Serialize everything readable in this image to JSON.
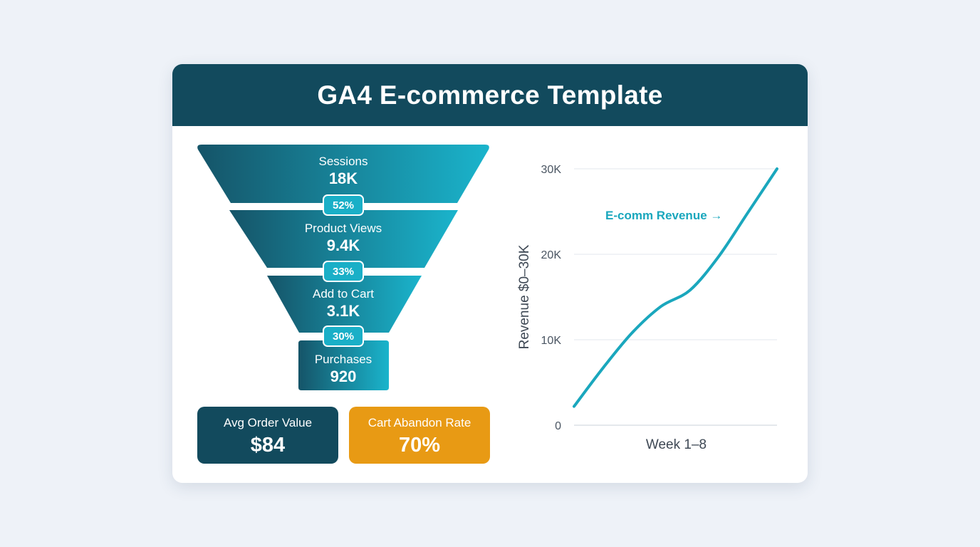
{
  "title": "GA4 E-commerce Template",
  "funnel": {
    "stages": [
      {
        "name": "Sessions",
        "value": "18K"
      },
      {
        "name": "Product Views",
        "value": "9.4K"
      },
      {
        "name": "Add to Cart",
        "value": "3.1K"
      },
      {
        "name": "Purchases",
        "value": "920"
      }
    ],
    "rates": [
      "52%",
      "33%",
      "30%"
    ]
  },
  "kpis": {
    "avg_order_value": {
      "label": "Avg Order Value",
      "value": "$84"
    },
    "cart_abandon_rate": {
      "label": "Cart Abandon Rate",
      "value": "70%"
    }
  },
  "colors": {
    "header": "#124a5d",
    "funnel_dark": "#155468",
    "funnel_light": "#1ab4cc",
    "accent": "#1aa7bd",
    "orange": "#e89a14"
  },
  "chart_data": {
    "type": "line",
    "xlabel": "Week 1–8",
    "ylabel": "Revenue $0–30K",
    "ylim": [
      0,
      30000
    ],
    "yticks": [
      0,
      10000,
      20000,
      30000
    ],
    "ytick_labels": [
      "0",
      "10K",
      "20K",
      "30K"
    ],
    "grid": true,
    "x": [
      1,
      2,
      3,
      4,
      5,
      6,
      7,
      8
    ],
    "series": [
      {
        "name": "E-comm Revenue",
        "values": [
          2200,
          6700,
          10800,
          13900,
          15800,
          19800,
          24900,
          30000
        ]
      }
    ],
    "annotation": "E-comm Revenue →"
  }
}
